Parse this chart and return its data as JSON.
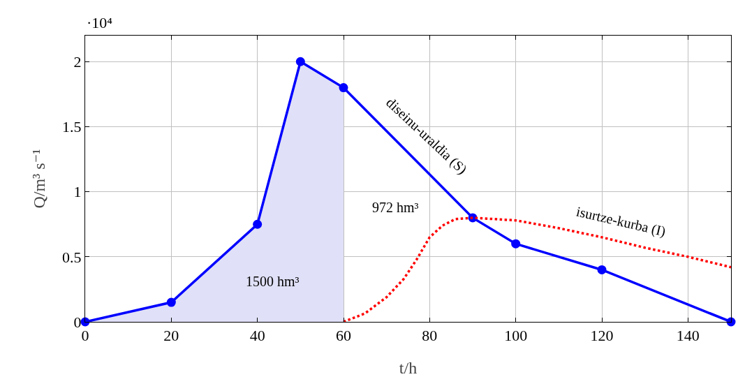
{
  "chart_data": {
    "type": "line",
    "xlabel": "t/h",
    "ylabel": "Q/m³ s⁻¹",
    "xlim": [
      0,
      150
    ],
    "ylim": [
      0,
      2.2
    ],
    "xticks": [
      0,
      20,
      40,
      60,
      80,
      100,
      120,
      140
    ],
    "yticks": [
      0,
      0.5,
      1,
      1.5,
      2
    ],
    "grid": true,
    "series": [
      {
        "type": "area",
        "color": "#e0e0f8",
        "x": [
          0,
          20,
          40,
          50,
          60
        ],
        "values": [
          0,
          0.15,
          0.75,
          2,
          1.8
        ],
        "marker": "none"
      },
      {
        "color": "#0000ff",
        "x": [
          0,
          20,
          40,
          50,
          60,
          90,
          100,
          120,
          150
        ],
        "values": [
          0,
          0.15,
          0.75,
          2,
          1.8,
          0.8,
          0.6,
          0.4,
          0
        ],
        "marker": "circle",
        "line_style": "solid"
      },
      {
        "color": "#ff0000",
        "x": [
          60,
          65,
          70,
          74,
          77,
          80,
          83,
          86,
          90,
          100,
          110,
          120,
          130,
          140,
          150
        ],
        "values": [
          0,
          0.065,
          0.19,
          0.33,
          0.48,
          0.65,
          0.74,
          0.79,
          0.8,
          0.78,
          0.72,
          0.65,
          0.57,
          0.5,
          0.42
        ],
        "marker": "none",
        "line_style": "dotted"
      }
    ],
    "annotations": [
      "·10⁴",
      "1500 hm³",
      "972 hm³",
      "diseinu-uraldia (S)",
      "isurtze-kurba (I)"
    ]
  }
}
